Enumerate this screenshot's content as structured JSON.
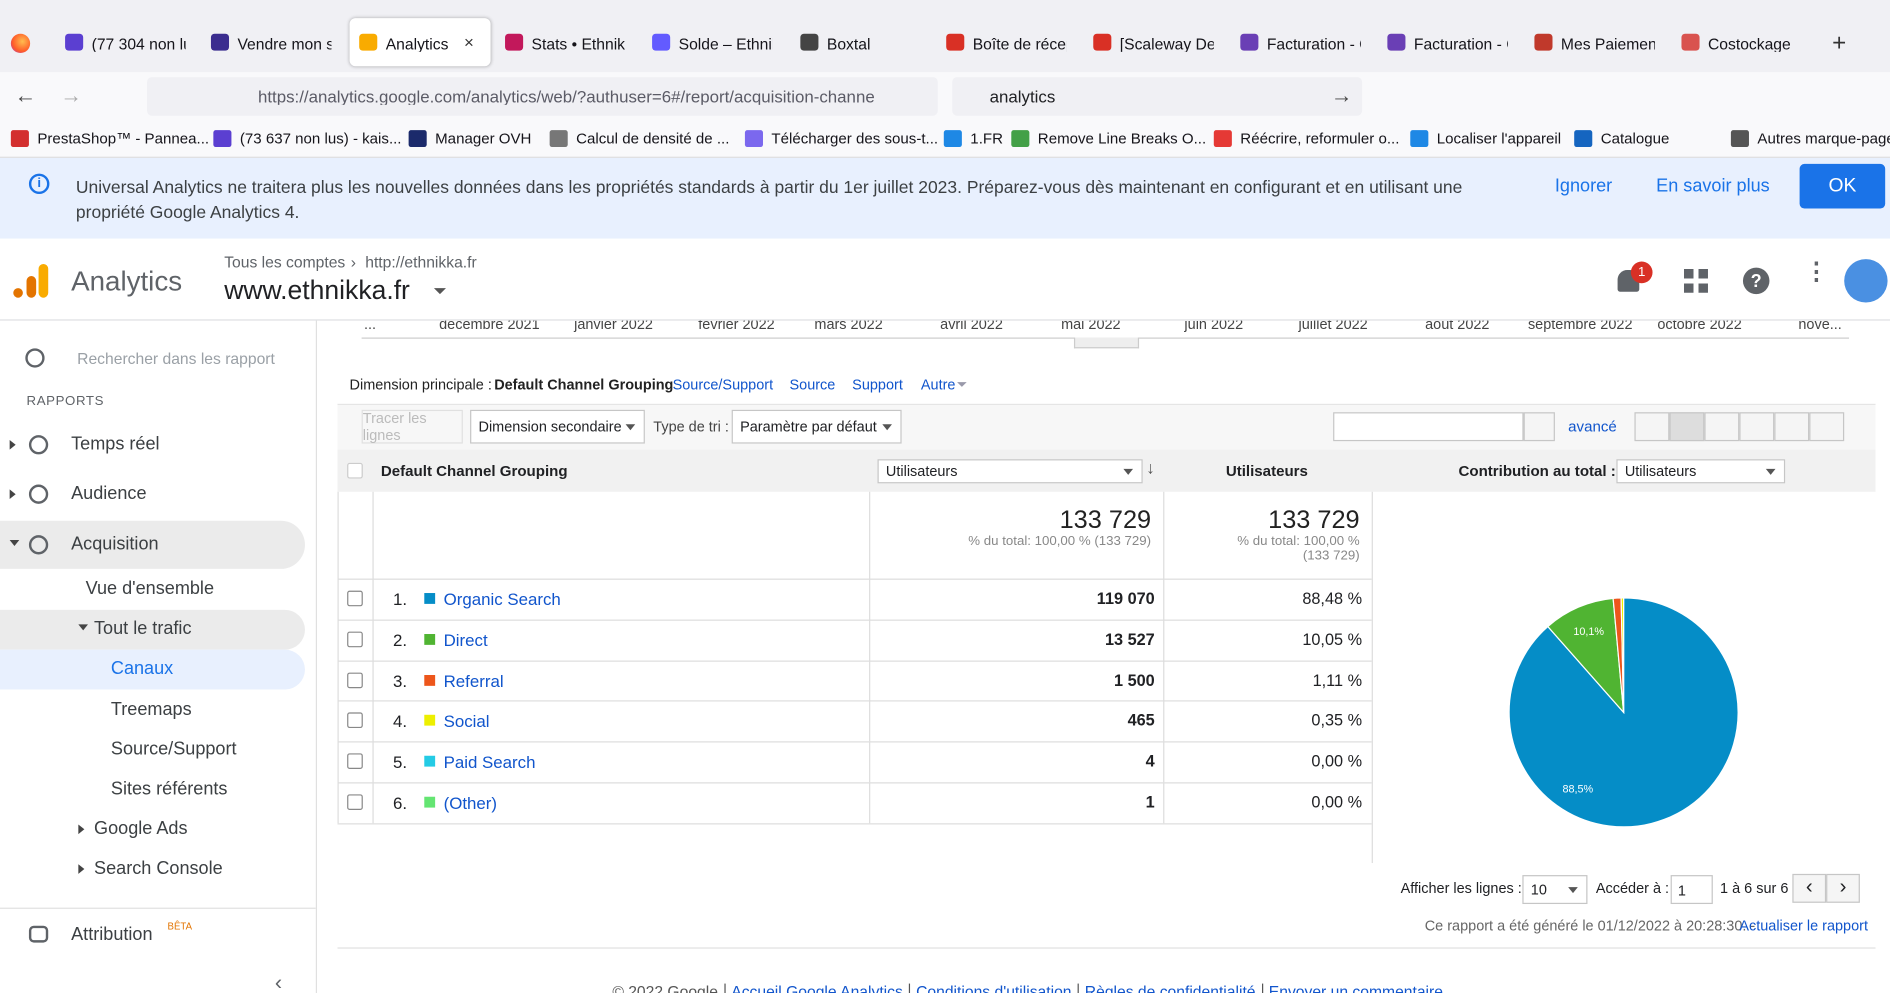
{
  "browser": {
    "tabs": [
      "(77 304 non lu",
      "Vendre mon si",
      "Analytics",
      "Stats • Ethnikk",
      "Solde – Ethnik",
      "Boxtal",
      "Boîte de récep",
      "[Scaleway Dec",
      "Facturation - C",
      "Facturation - C",
      "Mes Paiement",
      "Costockage"
    ],
    "url": "https://analytics.google.com/analytics/web/?authuser=6#/report/acquisition-channe",
    "search": "analytics",
    "bookmarks": [
      "PrestaShop™ - Pannea...",
      "(73 637 non lus) - kais...",
      "Manager OVH",
      "Calcul de densité de ...",
      "Télécharger des sous-t...",
      "1.FR",
      "Remove Line Breaks O...",
      "Réécrire, reformuler o...",
      "Localiser l'appareil",
      "Catalogue",
      "Autres marque-pages"
    ]
  },
  "banner": {
    "text": "Universal Analytics ne traitera plus les nouvelles données dans les propriétés standards à partir du 1er juillet 2023. Préparez-vous dès maintenant en configurant et en utilisant une propriété Google Analytics 4.",
    "ignore": "Ignorer",
    "learn_more": "En savoir plus",
    "ok": "OK"
  },
  "header": {
    "product": "Analytics",
    "breadcrumb": [
      "Tous les comptes",
      "http://ethnikka.fr"
    ],
    "property": "www.ethnikka.fr",
    "notifications": "1"
  },
  "sidebar": {
    "search_placeholder": "Rechercher dans les rapport",
    "section": "RAPPORTS",
    "items": [
      "Temps réel",
      "Audience",
      "Acquisition",
      "Vue d'ensemble",
      "Tout le trafic",
      "Canaux",
      "Treemaps",
      "Source/Support",
      "Sites référents",
      "Google Ads",
      "Search Console"
    ],
    "attribution": "Attribution",
    "beta": "BÊTA"
  },
  "timeline": [
    "...",
    "décembre 2021",
    "janvier 2022",
    "février 2022",
    "mars 2022",
    "avril 2022",
    "mai 2022",
    "juin 2022",
    "juillet 2022",
    "août 2022",
    "septembre 2022",
    "octobre 2022",
    "nove..."
  ],
  "dimensions": {
    "label": "Dimension principale :",
    "options": [
      "Default Channel Grouping",
      "Source/Support",
      "Source",
      "Support",
      "Autre"
    ]
  },
  "toolbar": {
    "plot_rows": "Tracer les lignes",
    "secondary": "Dimension secondaire",
    "sort_label": "Type de tri :",
    "sort": "Paramètre par défaut",
    "advanced": "avancé"
  },
  "table": {
    "columns": [
      "Default Channel Grouping",
      "Utilisateurs",
      "Utilisateurs",
      "Contribution au total :",
      "Utilisateurs"
    ],
    "totals": [
      {
        "value": "133 729",
        "note": "% du total: 100,00 % (133 729)"
      },
      {
        "value": "133 729",
        "note": "% du total: 100,00 % (133 729)"
      }
    ],
    "rows": [
      [
        "1.",
        "Organic Search",
        "119 070",
        "88,48 %"
      ],
      [
        "2.",
        "Direct",
        "13 527",
        "10,05 %"
      ],
      [
        "3.",
        "Referral",
        "1 500",
        "1,11 %"
      ],
      [
        "4.",
        "Social",
        "465",
        "0,35 %"
      ],
      [
        "5.",
        "Paid Search",
        "4",
        "0,00 %"
      ],
      [
        "6.",
        "(Other)",
        "1",
        "0,00 %"
      ]
    ]
  },
  "pie": {
    "values": [
      88.48,
      10.05,
      1.11,
      0.35,
      0.0,
      0.0
    ],
    "value_labels": [
      "88,5%",
      "10,1%",
      null,
      null,
      null,
      null
    ],
    "colors": [
      "#058dc7",
      "#50b432",
      "#ed561b",
      "#edef00",
      "#24cbe5",
      "#64e572"
    ]
  },
  "pagination": {
    "rows_label": "Afficher les lignes :",
    "rows": "10",
    "goto_label": "Accéder à :",
    "goto": "1",
    "range": "1 à 6 sur 6"
  },
  "report": {
    "generated": "Ce rapport a été généré le 01/12/2022 à 20:28:30. -",
    "refresh": "Actualiser le rapport"
  },
  "footer": [
    "© 2022 Google",
    "Accueil Google Analytics",
    "Conditions d'utilisation",
    "Règles de confidentialité",
    "Envoyer un commentaire"
  ]
}
